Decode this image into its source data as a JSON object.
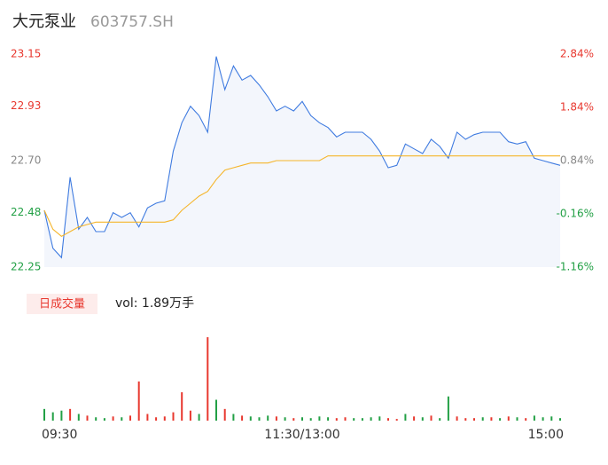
{
  "header": {
    "name": "大元泵业",
    "code": "603757.SH"
  },
  "chart_data": [
    {
      "type": "line",
      "x": [
        0,
        4,
        8,
        12,
        16,
        20,
        24,
        28,
        32,
        36,
        40,
        44,
        48,
        52,
        56,
        60,
        64,
        68,
        72,
        76,
        80,
        84,
        88,
        92,
        96,
        100,
        104,
        108,
        112,
        116,
        120,
        124,
        128,
        132,
        136,
        140,
        144,
        148,
        152,
        156,
        160,
        164,
        168,
        172,
        176,
        180,
        184,
        188,
        192,
        196,
        200,
        204,
        208,
        212,
        216,
        220,
        224,
        228,
        232,
        236,
        240
      ],
      "xlim": [
        0,
        240
      ],
      "series": [
        {
          "color": "#3f7be0",
          "fill": "#f3f6fc",
          "values": [
            22.49,
            22.33,
            22.29,
            22.63,
            22.41,
            22.46,
            22.4,
            22.4,
            22.48,
            22.46,
            22.48,
            22.42,
            22.5,
            22.52,
            22.53,
            22.74,
            22.86,
            22.93,
            22.89,
            22.82,
            23.14,
            23.0,
            23.1,
            23.04,
            23.06,
            23.02,
            22.97,
            22.91,
            22.93,
            22.91,
            22.95,
            22.89,
            22.86,
            22.84,
            22.8,
            22.82,
            22.82,
            22.82,
            22.79,
            22.74,
            22.67,
            22.68,
            22.77,
            22.75,
            22.73,
            22.79,
            22.76,
            22.71,
            22.82,
            22.79,
            22.81,
            22.82,
            22.82,
            22.82,
            22.78,
            22.77,
            22.78,
            22.71,
            22.7,
            22.69,
            22.68
          ]
        },
        {
          "color": "#f5b52a",
          "values": [
            22.49,
            22.41,
            22.38,
            22.4,
            22.42,
            22.43,
            22.44,
            22.44,
            22.44,
            22.44,
            22.44,
            22.44,
            22.44,
            22.44,
            22.44,
            22.45,
            22.49,
            22.52,
            22.55,
            22.57,
            22.62,
            22.66,
            22.67,
            22.68,
            22.69,
            22.69,
            22.69,
            22.7,
            22.7,
            22.7,
            22.7,
            22.7,
            22.7,
            22.72,
            22.72,
            22.72,
            22.72,
            22.72,
            22.72,
            22.72,
            22.72,
            22.72,
            22.72,
            22.72,
            22.72,
            22.72,
            22.72,
            22.72,
            22.72,
            22.72,
            22.72,
            22.72,
            22.72,
            22.72,
            22.72,
            22.72,
            22.72,
            22.72,
            22.72,
            22.72,
            22.72
          ]
        }
      ],
      "ylim": [
        22.25,
        23.15
      ],
      "yticks": [
        23.15,
        22.93,
        {
          "value": 22.7,
          "label": "22.70"
        },
        22.48,
        22.25
      ],
      "ytick_colors": [
        "#e8382f",
        "#e8382f",
        "#888888",
        "#22a045",
        "#22a045"
      ],
      "y2lim": [
        -1.16,
        2.84
      ],
      "y2ticks": [
        {
          "value": 2.84,
          "label": "2.84%"
        },
        {
          "value": 1.84,
          "label": "1.84%"
        },
        {
          "value": 0.84,
          "label": "0.84%"
        },
        {
          "value": -0.16,
          "label": "-0.16%"
        },
        {
          "value": -1.16,
          "label": "-1.16%"
        }
      ],
      "y2tick_colors": [
        "#e8382f",
        "#e8382f",
        "#888888",
        "#22a045",
        "#22a045"
      ]
    },
    {
      "type": "bar",
      "tab": "日成交量",
      "label": "vol: 1.89万手",
      "x": [
        0,
        4,
        8,
        12,
        16,
        20,
        24,
        28,
        32,
        36,
        40,
        44,
        48,
        52,
        56,
        60,
        64,
        68,
        72,
        76,
        80,
        84,
        88,
        92,
        96,
        100,
        104,
        108,
        112,
        116,
        120,
        124,
        128,
        132,
        136,
        140,
        144,
        148,
        152,
        156,
        160,
        164,
        168,
        172,
        176,
        180,
        184,
        188,
        192,
        196,
        200,
        204,
        208,
        212,
        216,
        220,
        224,
        228,
        232,
        236,
        240
      ],
      "xlim": [
        0,
        240
      ],
      "xticks": [
        {
          "value": 0,
          "label": "09:30"
        },
        {
          "value": 120,
          "label": "11:30/13:00"
        },
        {
          "value": 240,
          "label": "15:00"
        }
      ],
      "ylim": [
        0,
        100
      ],
      "values": [
        14,
        10,
        12,
        14,
        8,
        6,
        4,
        3,
        5,
        4,
        6,
        47,
        8,
        4,
        5,
        10,
        34,
        12,
        8,
        100,
        25,
        14,
        8,
        6,
        5,
        4,
        6,
        5,
        4,
        3,
        4,
        3,
        5,
        4,
        3,
        4,
        3,
        3,
        4,
        5,
        3,
        2,
        8,
        5,
        4,
        6,
        3,
        29,
        5,
        3,
        3,
        4,
        4,
        3,
        5,
        4,
        3,
        6,
        4,
        5,
        3
      ],
      "colors": [
        "#22a045",
        "#22a045",
        "#22a045",
        "#e8382f",
        "#22a045",
        "#e8382f",
        "#22a045",
        "#22a045",
        "#e8382f",
        "#22a045",
        "#e8382f",
        "#e8382f",
        "#e8382f",
        "#e8382f",
        "#e8382f",
        "#e8382f",
        "#e8382f",
        "#e8382f",
        "#22a045",
        "#e8382f",
        "#22a045",
        "#e8382f",
        "#22a045",
        "#e8382f",
        "#22a045",
        "#22a045",
        "#22a045",
        "#e8382f",
        "#22a045",
        "#e8382f",
        "#22a045",
        "#22a045",
        "#22a045",
        "#22a045",
        "#e8382f",
        "#e8382f",
        "#22a045",
        "#22a045",
        "#22a045",
        "#22a045",
        "#e8382f",
        "#e8382f",
        "#22a045",
        "#e8382f",
        "#22a045",
        "#e8382f",
        "#22a045",
        "#22a045",
        "#e8382f",
        "#e8382f",
        "#e8382f",
        "#22a045",
        "#e8382f",
        "#22a045",
        "#e8382f",
        "#22a045",
        "#e8382f",
        "#22a045",
        "#22a045",
        "#22a045",
        "#22a045"
      ]
    }
  ]
}
